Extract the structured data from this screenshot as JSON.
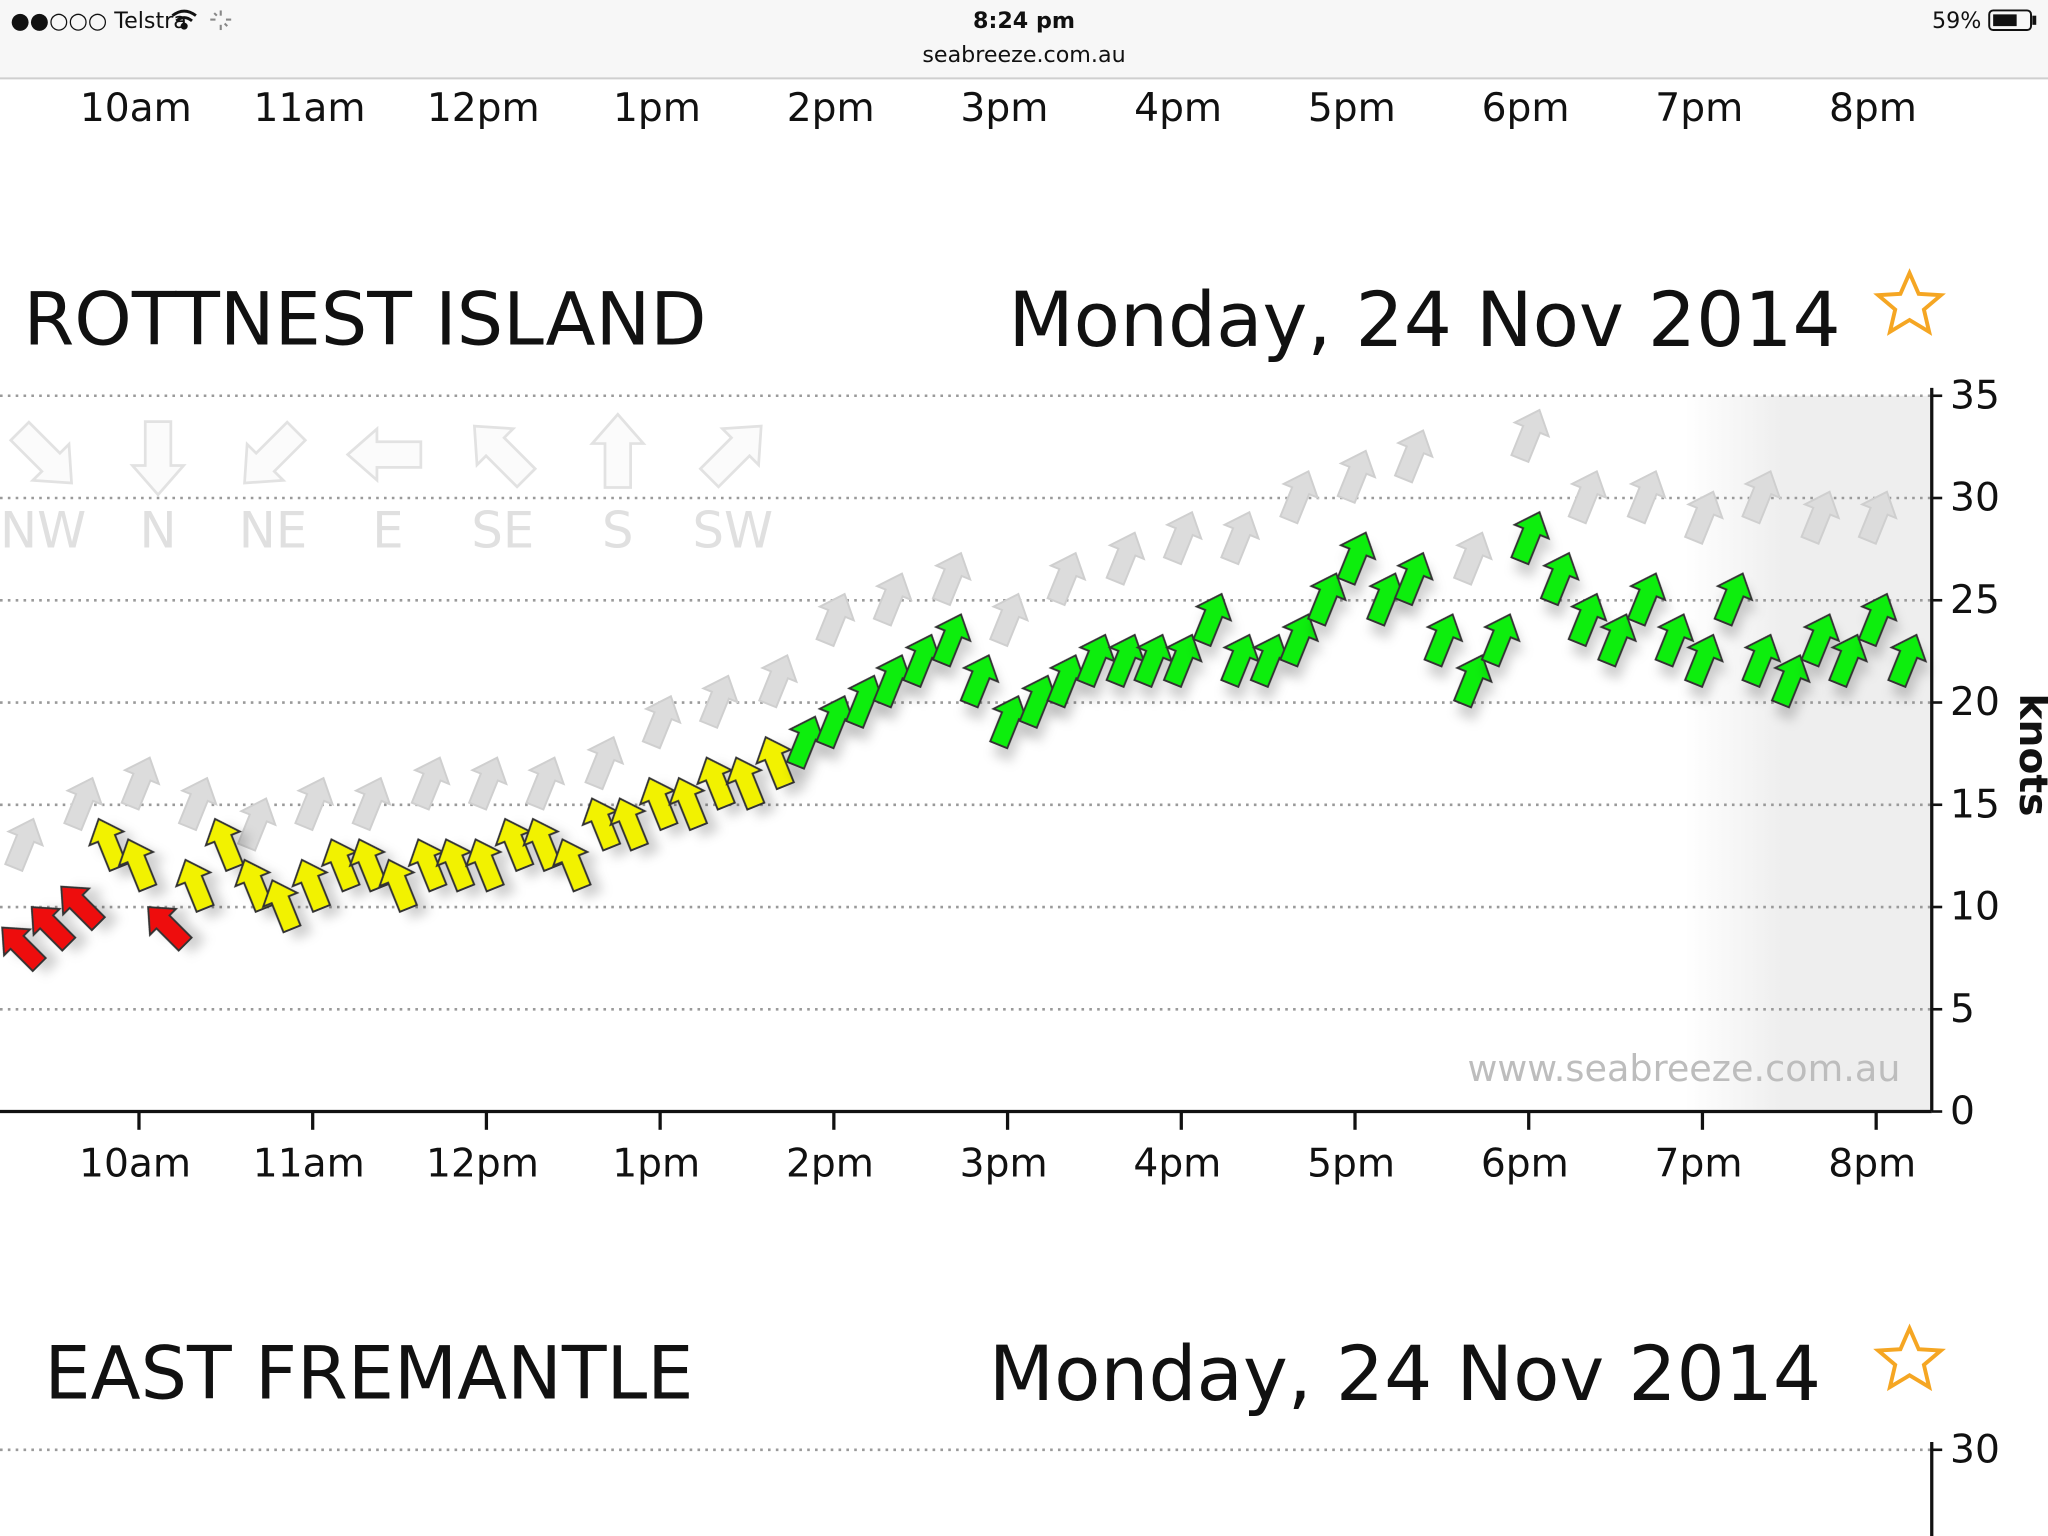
{
  "status_bar": {
    "carrier": "●●○○○ Telstra",
    "time": "8:24 pm",
    "url": "seabreeze.com.au",
    "battery": "59%"
  },
  "top_axis_labels": [
    "10am",
    "11am",
    "12pm",
    "1pm",
    "2pm",
    "3pm",
    "4pm",
    "5pm",
    "6pm",
    "7pm",
    "8pm"
  ],
  "chart_data": [
    {
      "type": "wind",
      "title": "ROTTNEST ISLAND",
      "subtitle": "Monday, 24 Nov 2014",
      "y_label": "knots",
      "watermark": "www.seabreeze.com.au",
      "direction_legend": [
        "NW",
        "N",
        "NE",
        "E",
        "SE",
        "S",
        "SW"
      ],
      "xlim": [
        9.2,
        20.32
      ],
      "xticks": [
        {
          "value": 10,
          "label": "10am"
        },
        {
          "value": 11,
          "label": "11am"
        },
        {
          "value": 12,
          "label": "12pm"
        },
        {
          "value": 13,
          "label": "1pm"
        },
        {
          "value": 14,
          "label": "2pm"
        },
        {
          "value": 15,
          "label": "3pm"
        },
        {
          "value": 16,
          "label": "4pm"
        },
        {
          "value": 17,
          "label": "5pm"
        },
        {
          "value": 18,
          "label": "6pm"
        },
        {
          "value": 19,
          "label": "7pm"
        },
        {
          "value": 20,
          "label": "8pm"
        }
      ],
      "ylim": [
        0,
        35
      ],
      "yticks": [
        0,
        5,
        10,
        15,
        20,
        25,
        30,
        35
      ],
      "grid": true,
      "series": [
        {
          "color": "#dcdcdc",
          "direction": "SSW",
          "x": [
            9.33,
            9.67,
            10,
            10.33,
            10.67,
            11,
            11.33,
            11.67,
            12,
            12.33,
            12.67,
            13,
            13.33,
            13.67,
            14,
            14.33,
            14.67,
            15,
            15.33,
            15.67,
            16,
            16.33,
            16.67,
            17,
            17.33,
            17.67,
            18,
            18.33,
            18.67,
            19,
            19.33,
            19.67,
            20
          ],
          "values": [
            13,
            15,
            16,
            15,
            14,
            15,
            15,
            16,
            16,
            16,
            17,
            19,
            20,
            21,
            24,
            25,
            26,
            24,
            26,
            27,
            28,
            28,
            30,
            31,
            32,
            27,
            33,
            30,
            30,
            29,
            30,
            29,
            29
          ]
        },
        {
          "color": "#ee1111",
          "direction": "SE",
          "x": [
            9.33,
            9.5,
            9.67,
            10.17
          ],
          "values": [
            8,
            9,
            10,
            9
          ]
        },
        {
          "color": "#f2f200",
          "direction": "SSE",
          "x": [
            9.83,
            10,
            10.33,
            10.5,
            10.67,
            10.83,
            11,
            11.17,
            11.33,
            11.5,
            11.67,
            11.83,
            12,
            12.17,
            12.33,
            12.5,
            12.67,
            12.83,
            13,
            13.17,
            13.33,
            13.5,
            13.67
          ],
          "values": [
            13,
            12,
            11,
            13,
            11,
            10,
            11,
            12,
            12,
            11,
            12,
            12,
            12,
            13,
            13,
            12,
            14,
            14,
            15,
            15,
            16,
            16,
            17
          ]
        },
        {
          "color": "#11ee11",
          "direction": "SSW",
          "x": [
            13.83,
            14,
            14.17,
            14.33,
            14.5,
            14.67,
            14.83,
            15,
            15.17,
            15.33,
            15.5,
            15.67,
            15.83,
            16,
            16.17,
            16.33,
            16.5,
            16.67,
            16.83,
            17,
            17.17,
            17.33,
            17.5,
            17.67,
            17.83,
            18,
            18.17,
            18.33,
            18.5,
            18.67,
            18.83,
            19,
            19.17,
            19.33,
            19.5,
            19.67,
            19.83,
            20,
            20.17
          ],
          "values": [
            18,
            19,
            20,
            21,
            22,
            23,
            21,
            19,
            20,
            21,
            22,
            22,
            22,
            22,
            24,
            22,
            22,
            23,
            25,
            27,
            25,
            26,
            23,
            21,
            23,
            28,
            26,
            24,
            23,
            25,
            23,
            22,
            25,
            22,
            21,
            23,
            22,
            24,
            22
          ]
        }
      ]
    },
    {
      "type": "wind",
      "title": "EAST FREMANTLE",
      "subtitle": "Monday, 24 Nov 2014",
      "ylim": [
        0,
        30
      ],
      "yticks": [
        30
      ],
      "grid": true,
      "series": []
    }
  ]
}
